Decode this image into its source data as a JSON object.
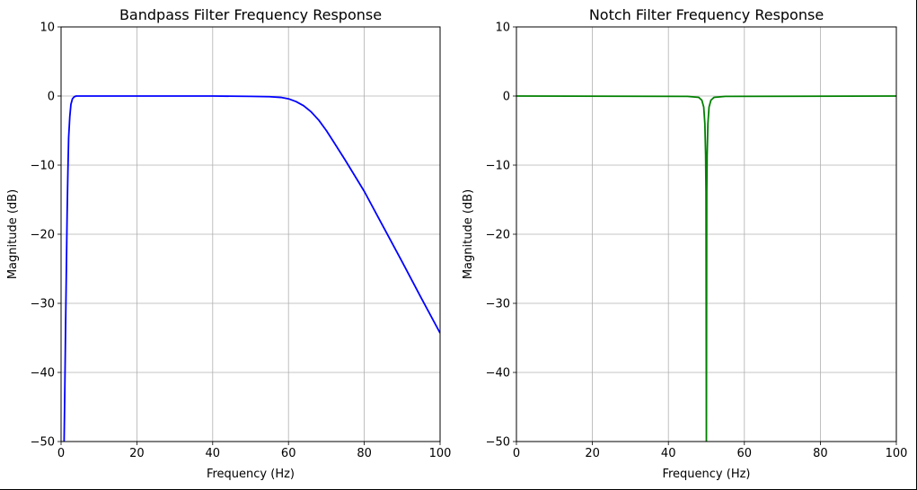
{
  "chart_data": [
    {
      "type": "line",
      "title": "Bandpass Filter Frequency Response",
      "xlabel": "Frequency (Hz)",
      "ylabel": "Magnitude (dB)",
      "xlim": [
        0,
        100
      ],
      "ylim": [
        -50,
        10
      ],
      "xticks": [
        0,
        20,
        40,
        60,
        80,
        100
      ],
      "yticks": [
        -50,
        -40,
        -30,
        -20,
        -10,
        0,
        10
      ],
      "grid": true,
      "series": [
        {
          "color": "#0000ff",
          "x": [
            0.8,
            1.0,
            1.2,
            1.4,
            1.6,
            1.8,
            2.0,
            2.3,
            2.6,
            3.0,
            3.5,
            4,
            6,
            10,
            20,
            30,
            40,
            50,
            55,
            58,
            60,
            62,
            64,
            66,
            68,
            70,
            72,
            75,
            78,
            80,
            85,
            90,
            95,
            100
          ],
          "y": [
            -50,
            -42,
            -33,
            -25,
            -17,
            -11,
            -6,
            -3,
            -1.2,
            -0.4,
            -0.1,
            0,
            0,
            0,
            0,
            0,
            0,
            -0.05,
            -0.1,
            -0.2,
            -0.4,
            -0.8,
            -1.4,
            -2.3,
            -3.5,
            -5.0,
            -6.7,
            -9.3,
            -12.0,
            -13.8,
            -18.9,
            -24.0,
            -29.2,
            -34.3
          ]
        }
      ]
    },
    {
      "type": "line",
      "title": "Notch Filter Frequency Response",
      "xlabel": "Frequency (Hz)",
      "ylabel": "Magnitude (dB)",
      "xlim": [
        0,
        100
      ],
      "ylim": [
        -50,
        10
      ],
      "xticks": [
        0,
        20,
        40,
        60,
        80,
        100
      ],
      "yticks": [
        -50,
        -40,
        -30,
        -20,
        -10,
        0,
        10
      ],
      "grid": true,
      "series": [
        {
          "color": "#008000",
          "x": [
            0,
            45,
            48,
            48.8,
            49.3,
            49.6,
            49.8,
            49.9,
            50,
            50.1,
            50.2,
            50.4,
            50.7,
            51.2,
            52,
            55,
            100
          ],
          "y": [
            0,
            -0.05,
            -0.2,
            -0.6,
            -1.6,
            -4.0,
            -8.5,
            -14,
            -50,
            -14,
            -8.5,
            -4.0,
            -1.6,
            -0.6,
            -0.2,
            -0.05,
            0
          ]
        }
      ]
    }
  ]
}
